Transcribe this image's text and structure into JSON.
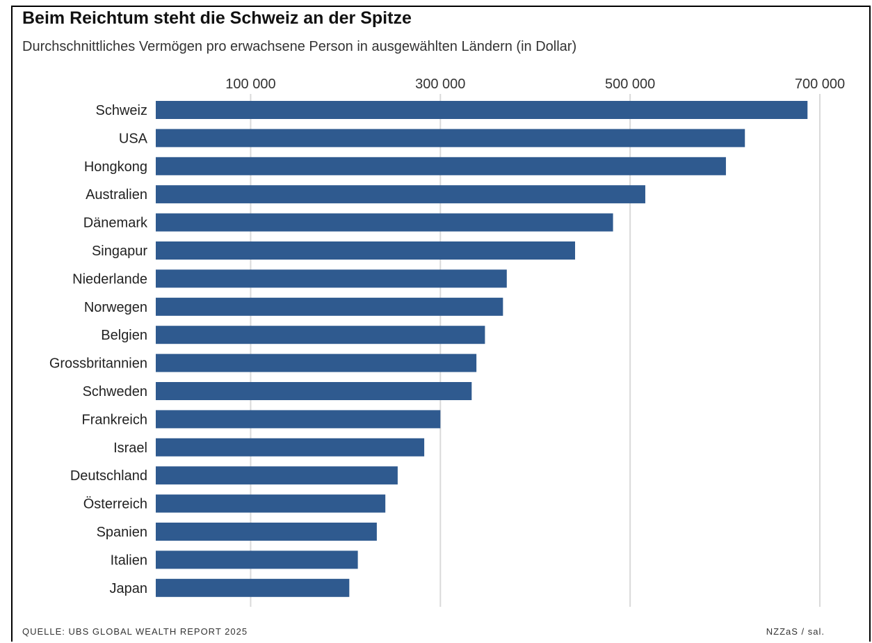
{
  "chart_data": {
    "type": "bar",
    "orientation": "horizontal",
    "title": "Beim Reichtum steht die Schweiz an der Spitze",
    "subtitle": "Durchschnittliches Vermögen pro erwachsene Person in ausgewählten Ländern (in Dollar)",
    "categories": [
      "Schweiz",
      "USA",
      "Hongkong",
      "Australien",
      "Dänemark",
      "Singapur",
      "Niederlande",
      "Norwegen",
      "Belgien",
      "Grossbritannien",
      "Schweden",
      "Frankreich",
      "Israel",
      "Deutschland",
      "Österreich",
      "Spanien",
      "Italien",
      "Japan"
    ],
    "values": [
      687000,
      621000,
      601000,
      516000,
      482000,
      442000,
      370000,
      366000,
      347000,
      338000,
      333000,
      300000,
      283000,
      255000,
      242000,
      233000,
      213000,
      204000
    ],
    "xlim": [
      0,
      700000
    ],
    "ticks": [
      100000,
      300000,
      500000,
      700000
    ],
    "tick_labels": [
      "100 000",
      "300 000",
      "500 000",
      "700 000"
    ],
    "grid": true,
    "bar_color": "#2f5a8f",
    "grid_color": "#d9d9d9",
    "source": "QUELLE: UBS GLOBAL WEALTH REPORT 2025",
    "credit": "NZZaS / sal."
  }
}
